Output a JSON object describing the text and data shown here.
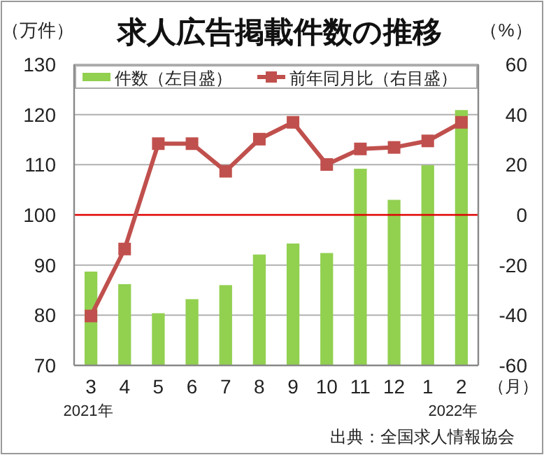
{
  "chart_data": {
    "type": "bar",
    "title": "求人広告掲載件数の推移",
    "ylabel": "（万件）",
    "y2label": "（%）",
    "xlabel": "（月）",
    "categories": [
      "3",
      "4",
      "5",
      "6",
      "7",
      "8",
      "9",
      "10",
      "11",
      "12",
      "1",
      "2"
    ],
    "series": [
      {
        "name": "件数（左目盛）",
        "color": "#92d050",
        "values": [
          88.7,
          86.2,
          80.4,
          83.2,
          86.0,
          92.1,
          94.3,
          92.4,
          109.2,
          103.0,
          109.9,
          120.9
        ]
      },
      {
        "name": "前年同月比（右目盛）",
        "type": "line",
        "axis": "y2",
        "color": "#c0504d",
        "marker": "square",
        "values": [
          -40.3,
          -13.6,
          28.4,
          28.4,
          17.4,
          30.2,
          36.9,
          20.1,
          26.3,
          26.9,
          29.5,
          36.9
        ]
      }
    ],
    "ylim": [
      70,
      130
    ],
    "yticks": [
      70,
      80,
      90,
      100,
      110,
      120,
      130
    ],
    "y2lim": [
      -60,
      60
    ],
    "y2ticks": [
      -60,
      -40,
      -20,
      0,
      20,
      40,
      60
    ],
    "ref_lines": [
      {
        "axis": "y2",
        "value": 0,
        "color": "#e00000"
      }
    ],
    "grid": "y",
    "legend": "top",
    "annotations": [
      "2021年",
      "2022年",
      "出典：全国求人情報協会"
    ]
  }
}
